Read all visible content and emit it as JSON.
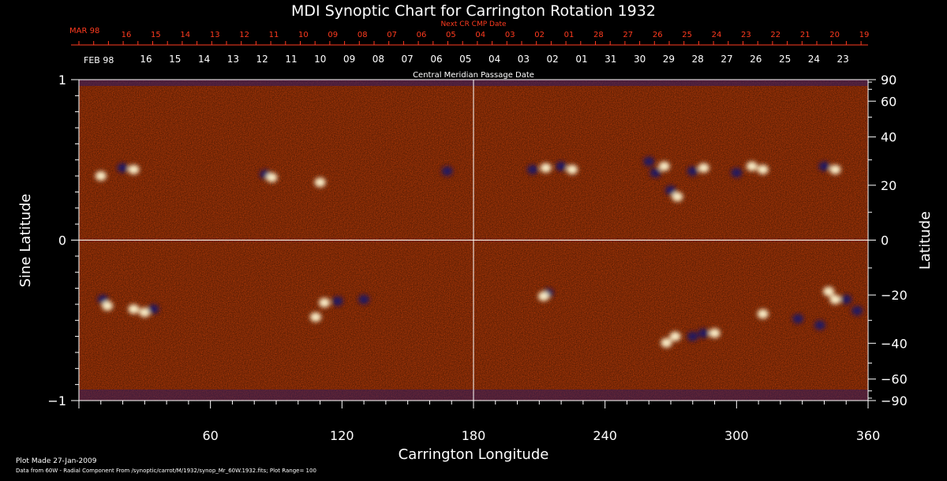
{
  "chart_data": {
    "type": "heatmap",
    "title": "MDI Synoptic Chart for Carrington Rotation 1932",
    "xlabel": "Carrington Longitude",
    "ylabel_left": "Sine Latitude",
    "ylabel_right": "Latitude",
    "xlim": [
      0,
      360
    ],
    "ylim": [
      -1,
      1
    ],
    "x_ticks": [
      "60",
      "120",
      "180",
      "240",
      "300",
      "360"
    ],
    "x_tick_values": [
      60,
      120,
      180,
      240,
      300,
      360
    ],
    "y_ticks_left": [
      "1",
      "0",
      "−1"
    ],
    "y_tick_values_left": [
      1,
      0,
      -1
    ],
    "y_ticks_right": [
      "90",
      "60",
      "40",
      "20",
      "0",
      "−20",
      "−40",
      "−60",
      "−90"
    ],
    "y_tick_values_right": [
      90,
      60,
      40,
      20,
      0,
      -20,
      -40,
      -60,
      -90
    ],
    "reference_lines": {
      "longitude": 180,
      "sine_latitude": 0
    },
    "next_cr_axis": {
      "title": "Next CR CMP Date",
      "month_label": "MAR 98",
      "labels": [
        "16",
        "15",
        "14",
        "13",
        "12",
        "11",
        "10",
        "09",
        "08",
        "07",
        "06",
        "05",
        "04",
        "03",
        "02",
        "01",
        "28",
        "27",
        "26",
        "25",
        "24",
        "23",
        "22",
        "21",
        "20",
        "19"
      ],
      "color": "#ff3b1f"
    },
    "cmp_axis": {
      "title": "Central Meridian Passage Date",
      "month_label": "FEB 98",
      "labels": [
        "16",
        "15",
        "14",
        "13",
        "12",
        "11",
        "10",
        "09",
        "08",
        "07",
        "06",
        "05",
        "04",
        "03",
        "02",
        "01",
        "31",
        "30",
        "29",
        "28",
        "27",
        "26",
        "25",
        "24",
        "23"
      ]
    },
    "colormap": [
      "#1a1464",
      "#6b1a10",
      "#d23c06",
      "#f0640a",
      "#ff9a2e",
      "#ffe08a",
      "#ffffff"
    ],
    "field_description": "Radial magnetic field, plot range ±100",
    "active_regions": [
      {
        "lon": 10,
        "sinlat": 0.4,
        "polarity": "pos"
      },
      {
        "lon": 20,
        "sinlat": 0.45,
        "polarity": "neg"
      },
      {
        "lon": 25,
        "sinlat": 0.44,
        "polarity": "pos"
      },
      {
        "lon": 85,
        "sinlat": 0.41,
        "polarity": "neg"
      },
      {
        "lon": 88,
        "sinlat": 0.39,
        "polarity": "pos"
      },
      {
        "lon": 110,
        "sinlat": 0.36,
        "polarity": "pos"
      },
      {
        "lon": 168,
        "sinlat": 0.43,
        "polarity": "neg"
      },
      {
        "lon": 207,
        "sinlat": 0.44,
        "polarity": "neg"
      },
      {
        "lon": 213,
        "sinlat": 0.45,
        "polarity": "pos"
      },
      {
        "lon": 220,
        "sinlat": 0.46,
        "polarity": "neg"
      },
      {
        "lon": 225,
        "sinlat": 0.44,
        "polarity": "pos"
      },
      {
        "lon": 260,
        "sinlat": 0.49,
        "polarity": "neg"
      },
      {
        "lon": 263,
        "sinlat": 0.42,
        "polarity": "neg"
      },
      {
        "lon": 267,
        "sinlat": 0.46,
        "polarity": "pos"
      },
      {
        "lon": 270,
        "sinlat": 0.31,
        "polarity": "neg"
      },
      {
        "lon": 273,
        "sinlat": 0.27,
        "polarity": "pos"
      },
      {
        "lon": 280,
        "sinlat": 0.43,
        "polarity": "neg"
      },
      {
        "lon": 285,
        "sinlat": 0.45,
        "polarity": "pos"
      },
      {
        "lon": 300,
        "sinlat": 0.42,
        "polarity": "neg"
      },
      {
        "lon": 307,
        "sinlat": 0.46,
        "polarity": "pos"
      },
      {
        "lon": 312,
        "sinlat": 0.44,
        "polarity": "pos"
      },
      {
        "lon": 340,
        "sinlat": 0.46,
        "polarity": "neg"
      },
      {
        "lon": 345,
        "sinlat": 0.44,
        "polarity": "pos"
      },
      {
        "lon": 11,
        "sinlat": -0.37,
        "polarity": "neg"
      },
      {
        "lon": 13,
        "sinlat": -0.41,
        "polarity": "pos"
      },
      {
        "lon": 25,
        "sinlat": -0.43,
        "polarity": "pos"
      },
      {
        "lon": 30,
        "sinlat": -0.45,
        "polarity": "pos"
      },
      {
        "lon": 34,
        "sinlat": -0.43,
        "polarity": "neg"
      },
      {
        "lon": 108,
        "sinlat": -0.48,
        "polarity": "pos"
      },
      {
        "lon": 112,
        "sinlat": -0.39,
        "polarity": "pos"
      },
      {
        "lon": 118,
        "sinlat": -0.38,
        "polarity": "neg"
      },
      {
        "lon": 130,
        "sinlat": -0.37,
        "polarity": "neg"
      },
      {
        "lon": 214,
        "sinlat": -0.33,
        "polarity": "neg"
      },
      {
        "lon": 212,
        "sinlat": -0.35,
        "polarity": "pos"
      },
      {
        "lon": 268,
        "sinlat": -0.64,
        "polarity": "pos"
      },
      {
        "lon": 272,
        "sinlat": -0.6,
        "polarity": "pos"
      },
      {
        "lon": 280,
        "sinlat": -0.6,
        "polarity": "neg"
      },
      {
        "lon": 285,
        "sinlat": -0.58,
        "polarity": "neg"
      },
      {
        "lon": 290,
        "sinlat": -0.58,
        "polarity": "pos"
      },
      {
        "lon": 312,
        "sinlat": -0.46,
        "polarity": "pos"
      },
      {
        "lon": 328,
        "sinlat": -0.49,
        "polarity": "neg"
      },
      {
        "lon": 338,
        "sinlat": -0.53,
        "polarity": "neg"
      },
      {
        "lon": 342,
        "sinlat": -0.32,
        "polarity": "pos"
      },
      {
        "lon": 345,
        "sinlat": -0.37,
        "polarity": "pos"
      },
      {
        "lon": 350,
        "sinlat": -0.37,
        "polarity": "neg"
      },
      {
        "lon": 355,
        "sinlat": -0.44,
        "polarity": "neg"
      }
    ]
  },
  "footer": {
    "plot_made": "Plot Made 27-Jan-2009",
    "source_line": "Data from 60W - Radial Component From /synoptic/carrot/M/1932/synop_Mr_60W.1932.fits; Plot Range=  100"
  }
}
